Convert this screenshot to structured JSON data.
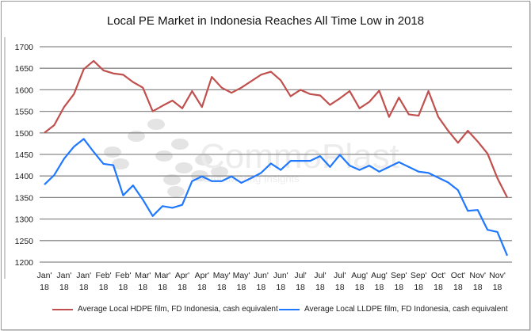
{
  "chart_data": {
    "type": "line",
    "title": "Local PE Market in Indonesia Reaches All Time Low in 2018",
    "xlabel": "",
    "ylabel": "",
    "ylim": [
      1200,
      1700
    ],
    "yticks": [
      1200,
      1250,
      1300,
      1350,
      1400,
      1450,
      1500,
      1550,
      1600,
      1650,
      1700
    ],
    "grid": true,
    "legend_position": "bottom",
    "watermark": "CommoPlast Empowering Insights",
    "xtick_labels": [
      "Jan' 18",
      "Jan' 18",
      "Jan' 18",
      "Feb' 18",
      "Feb' 18",
      "Mar' 18",
      "Mar' 18",
      "Apr' 18",
      "Apr' 18",
      "May' 18",
      "May' 18",
      "Jun' 18",
      "Jun' 18",
      "Jul' 18",
      "Jul' 18",
      "Jul' 18",
      "Aug' 18",
      "Aug' 18",
      "Sep' 18",
      "Sep' 18",
      "Oct' 18",
      "Oct' 18",
      "Nov' 18",
      "Nov' 18"
    ],
    "series": [
      {
        "name": "Average Local HDPE film, FD Indonesia, cash equivalent",
        "color": "#c0504d",
        "values": [
          1500,
          1518,
          1560,
          1590,
          1648,
          1667,
          1645,
          1638,
          1635,
          1618,
          1605,
          1550,
          1563,
          1575,
          1557,
          1597,
          1560,
          1630,
          1605,
          1593,
          1605,
          1620,
          1635,
          1642,
          1622,
          1585,
          1600,
          1590,
          1587,
          1565,
          1580,
          1597,
          1557,
          1572,
          1598,
          1537,
          1582,
          1543,
          1540,
          1597,
          1537,
          1505,
          1477,
          1505,
          1480,
          1452,
          1395,
          1350
        ]
      },
      {
        "name": "Average Local LLDPE film, FD Indonesia, cash equivalent",
        "color": "#1f78ff",
        "values": [
          1380,
          1402,
          1440,
          1468,
          1486,
          1456,
          1428,
          1425,
          1355,
          1378,
          1345,
          1307,
          1330,
          1326,
          1333,
          1388,
          1399,
          1388,
          1388,
          1399,
          1384,
          1395,
          1407,
          1429,
          1414,
          1435,
          1435,
          1435,
          1446,
          1421,
          1449,
          1424,
          1414,
          1424,
          1410,
          1421,
          1432,
          1421,
          1410,
          1407,
          1396,
          1385,
          1367,
          1319,
          1321,
          1275,
          1270,
          1215
        ]
      }
    ]
  }
}
